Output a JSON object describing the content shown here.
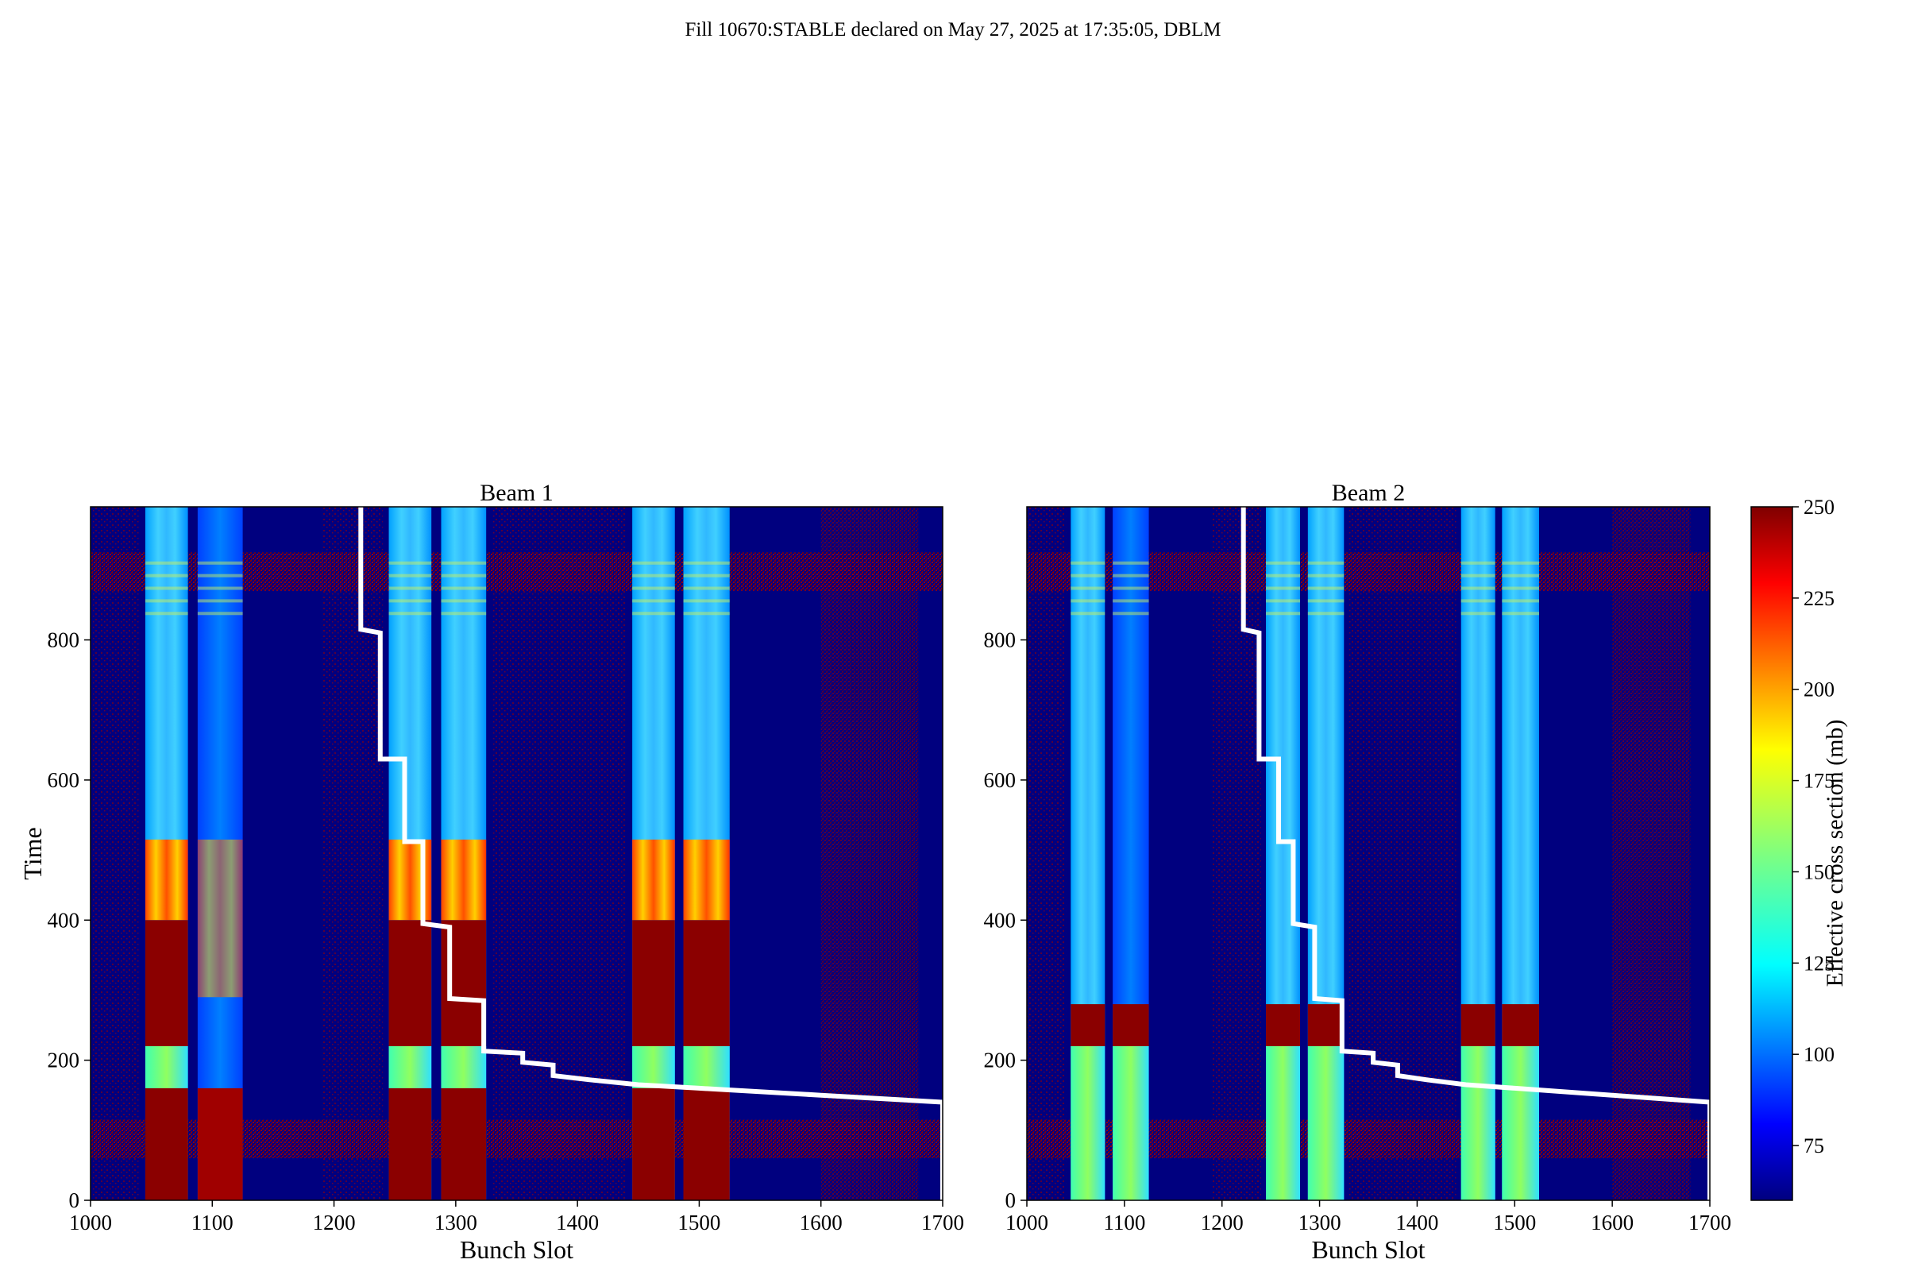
{
  "figure": {
    "suptitle": "Fill 10670:STABLE declared on May 27, 2025 at 17:35:05, DBLM"
  },
  "colors": {
    "background_low": "#00007f",
    "noise_high": "#7f0000",
    "line": "#ffffff",
    "colormap": "jet"
  },
  "chart_data": [
    {
      "type": "heatmap",
      "title": "Beam 1",
      "xlabel": "Bunch Slot",
      "ylabel": "Time",
      "xlim": [
        1000,
        1700
      ],
      "ylim": [
        0,
        990
      ],
      "xticks": [
        1000,
        1100,
        1200,
        1300,
        1400,
        1500,
        1600,
        1700
      ],
      "yticks": [
        0,
        200,
        400,
        600,
        800
      ],
      "filled_bunch_bands": [
        [
          1045,
          1080
        ],
        [
          1088,
          1125
        ],
        [
          1245,
          1280
        ],
        [
          1288,
          1325
        ],
        [
          1445,
          1480
        ],
        [
          1487,
          1525
        ]
      ],
      "overlay_line": {
        "color": "white",
        "points": [
          [
            1222,
            990
          ],
          [
            1222,
            815
          ],
          [
            1238,
            810
          ],
          [
            1238,
            630
          ],
          [
            1258,
            630
          ],
          [
            1258,
            512
          ],
          [
            1273,
            512
          ],
          [
            1273,
            395
          ],
          [
            1295,
            390
          ],
          [
            1295,
            288
          ],
          [
            1323,
            285
          ],
          [
            1323,
            213
          ],
          [
            1355,
            210
          ],
          [
            1355,
            197
          ],
          [
            1380,
            193
          ],
          [
            1380,
            178
          ],
          [
            1410,
            172
          ],
          [
            1450,
            165
          ],
          [
            1500,
            160
          ],
          [
            1600,
            150
          ],
          [
            1700,
            140
          ],
          [
            1700,
            0
          ]
        ]
      }
    },
    {
      "type": "heatmap",
      "title": "Beam 2",
      "xlabel": "Bunch Slot",
      "ylabel": "",
      "xlim": [
        1000,
        1700
      ],
      "ylim": [
        0,
        990
      ],
      "xticks": [
        1000,
        1100,
        1200,
        1300,
        1400,
        1500,
        1600,
        1700
      ],
      "yticks": [
        0,
        200,
        400,
        600,
        800
      ],
      "filled_bunch_bands": [
        [
          1045,
          1080
        ],
        [
          1088,
          1125
        ],
        [
          1245,
          1280
        ],
        [
          1288,
          1325
        ],
        [
          1445,
          1480
        ],
        [
          1487,
          1525
        ]
      ],
      "overlay_line": {
        "color": "white",
        "points": [
          [
            1222,
            990
          ],
          [
            1222,
            815
          ],
          [
            1238,
            810
          ],
          [
            1238,
            630
          ],
          [
            1258,
            630
          ],
          [
            1258,
            512
          ],
          [
            1273,
            512
          ],
          [
            1273,
            395
          ],
          [
            1295,
            390
          ],
          [
            1295,
            288
          ],
          [
            1323,
            285
          ],
          [
            1323,
            213
          ],
          [
            1355,
            210
          ],
          [
            1355,
            197
          ],
          [
            1380,
            193
          ],
          [
            1380,
            178
          ],
          [
            1410,
            172
          ],
          [
            1450,
            165
          ],
          [
            1500,
            160
          ],
          [
            1600,
            150
          ],
          [
            1700,
            140
          ],
          [
            1700,
            0
          ]
        ]
      }
    }
  ],
  "colorbar": {
    "label": "Effective cross section (mb)",
    "range": [
      60,
      250
    ],
    "ticks": [
      75,
      100,
      125,
      150,
      175,
      200,
      225,
      250
    ]
  }
}
